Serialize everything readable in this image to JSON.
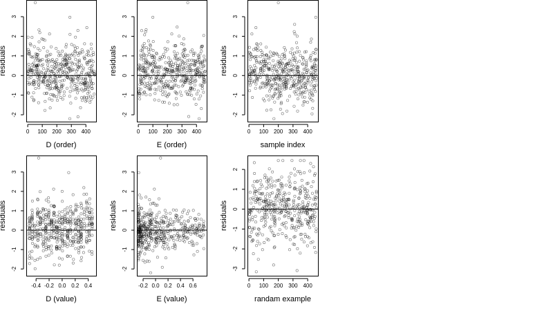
{
  "chart_data": [
    {
      "type": "scatter",
      "xlabel": "D (order)",
      "ylabel": "residuals",
      "xlim": [
        -10,
        470
      ],
      "ylim": [
        -2.35,
        3.85
      ],
      "xticks": [
        0,
        100,
        200,
        300,
        400
      ],
      "yticks": [
        -2,
        -1,
        0,
        1,
        2,
        3
      ],
      "hline": 0,
      "seed": 11,
      "gen": {
        "kind": "order",
        "n": 450,
        "sd": 0.75,
        "xmin": 0,
        "xmax": 460
      },
      "outliers": [
        [
          52,
          3.72
        ],
        [
          290,
          2.97
        ],
        [
          150,
          2.12
        ]
      ]
    },
    {
      "type": "scatter",
      "xlabel": "E (order)",
      "ylabel": "residuals",
      "xlim": [
        -10,
        470
      ],
      "ylim": [
        -2.35,
        3.85
      ],
      "xticks": [
        0,
        100,
        200,
        300,
        400
      ],
      "yticks": [
        -2,
        -1,
        0,
        1,
        2,
        3
      ],
      "hline": 0,
      "seed": 23,
      "gen": {
        "kind": "order",
        "n": 450,
        "sd": 0.75,
        "xmin": 0,
        "xmax": 460
      },
      "outliers": [
        [
          340,
          3.72
        ],
        [
          100,
          2.97
        ],
        [
          230,
          2.12
        ]
      ]
    },
    {
      "type": "scatter",
      "xlabel": "sample index",
      "ylabel": "residuals",
      "xlim": [
        -10,
        470
      ],
      "ylim": [
        -2.35,
        3.85
      ],
      "xticks": [
        0,
        100,
        200,
        300,
        400
      ],
      "yticks": [
        -2,
        -1,
        0,
        1,
        2,
        3
      ],
      "hline": 0,
      "seed": 37,
      "gen": {
        "kind": "order",
        "n": 450,
        "sd": 0.75,
        "xmin": 0,
        "xmax": 460
      },
      "outliers": [
        [
          200,
          3.72
        ],
        [
          455,
          2.97
        ],
        [
          20,
          2.12
        ]
      ]
    },
    {
      "type": "scatter",
      "xlabel": "D (value)",
      "ylabel": "residuals",
      "xlim": [
        -0.55,
        0.52
      ],
      "ylim": [
        -2.35,
        3.85
      ],
      "xticks": [
        -0.4,
        -0.2,
        0.0,
        0.2,
        0.4
      ],
      "yticks": [
        -2,
        -1,
        0,
        1,
        2,
        3
      ],
      "hline": 0,
      "seed": 51,
      "gen": {
        "kind": "columns",
        "n": 450,
        "sd": 0.75,
        "xmin": -0.52,
        "xmax": 0.48,
        "ncols": 24
      },
      "outliers": [
        [
          -0.36,
          3.72
        ],
        [
          0.1,
          2.97
        ],
        [
          -0.13,
          2.12
        ]
      ]
    },
    {
      "type": "scatter",
      "xlabel": "E (value)",
      "ylabel": "residuals",
      "xlim": [
        -0.3,
        0.82
      ],
      "ylim": [
        -2.35,
        3.85
      ],
      "xticks": [
        -0.2,
        0.0,
        0.2,
        0.4,
        0.6
      ],
      "yticks": [
        -2,
        -1,
        0,
        1,
        2,
        3
      ],
      "hline": 0,
      "seed": 63,
      "gen": {
        "kind": "skewed",
        "n": 450,
        "sd": 0.7,
        "xmin": -0.28,
        "xmax": 0.78
      },
      "outliers": [
        [
          0.08,
          3.72
        ],
        [
          -0.27,
          2.97
        ],
        [
          -0.02,
          2.12
        ]
      ]
    },
    {
      "type": "scatter",
      "xlabel": "randam example",
      "ylabel": "residuals",
      "xlim": [
        -10,
        470
      ],
      "ylim": [
        -3.35,
        2.7
      ],
      "xticks": [
        0,
        100,
        200,
        300,
        400
      ],
      "yticks": [
        -3,
        -2,
        -1,
        0,
        1,
        2
      ],
      "hline": 0,
      "seed": 79,
      "gen": {
        "kind": "uniform",
        "n": 420,
        "sd": 1.0,
        "xmin": 0,
        "xmax": 460
      },
      "outliers": [
        [
          50,
          -3.15
        ],
        [
          200,
          2.45
        ],
        [
          420,
          2.3
        ]
      ]
    }
  ]
}
